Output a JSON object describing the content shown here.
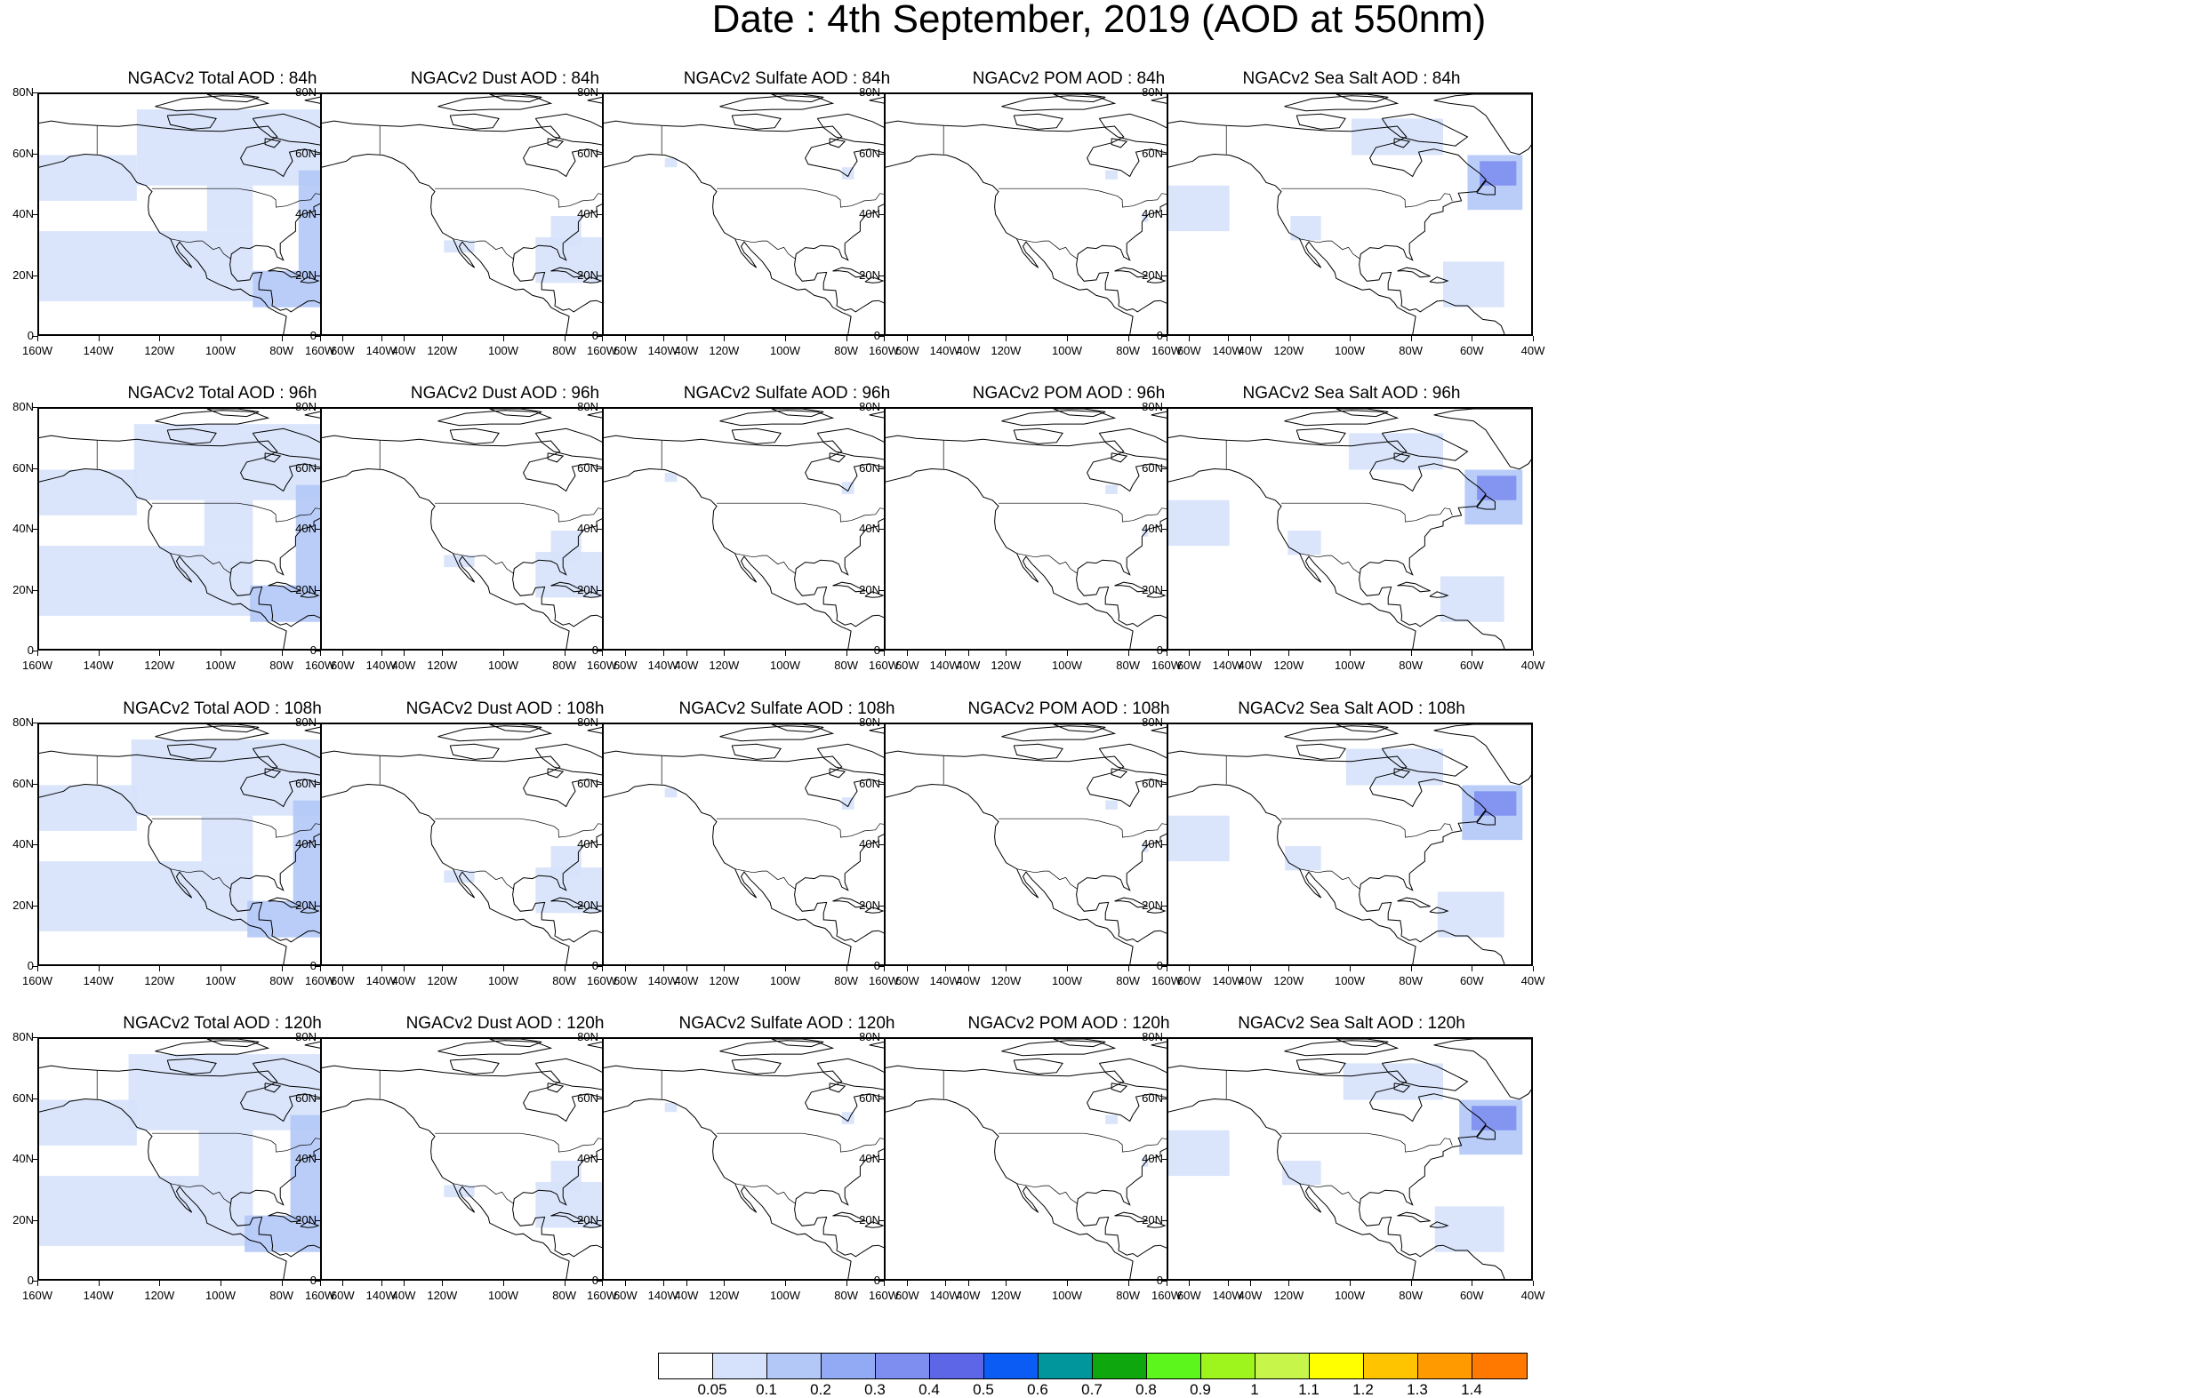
{
  "title": "Date : 4th September, 2019 (AOD at 550nm)",
  "rows": [
    "84h",
    "96h",
    "108h",
    "120h"
  ],
  "panels": [
    [
      "NGACv2 Total AOD : 84h",
      "NGACv2 Dust AOD : 84h",
      "NGACv2 Sulfate AOD : 84h",
      "NGACv2 POM AOD : 84h",
      "NGACv2 Sea Salt AOD : 84h"
    ],
    [
      "NGACv2 Total AOD : 96h",
      "NGACv2 Dust AOD : 96h",
      "NGACv2 Sulfate AOD : 96h",
      "NGACv2 POM AOD : 96h",
      "NGACv2 Sea Salt AOD : 96h"
    ],
    [
      "NGACv2 Total AOD : 108h",
      "NGACv2 Dust AOD : 108h",
      "NGACv2 Sulfate AOD : 108h",
      "NGACv2 POM AOD : 108h",
      "NGACv2 Sea Salt AOD : 108h"
    ],
    [
      "NGACv2 Total AOD : 120h",
      "NGACv2 Dust AOD : 120h",
      "NGACv2 Sulfate AOD : 120h",
      "NGACv2 POM AOD : 120h",
      "NGACv2 Sea Salt  AOD : 120h"
    ]
  ],
  "y_ticks": [
    "0",
    "20N",
    "40N",
    "60N",
    "80N"
  ],
  "x_ticks": [
    "160W",
    "140W",
    "120W",
    "100W",
    "80W",
    "60W",
    "40W"
  ],
  "map_extent": {
    "lon": [
      -160,
      -40
    ],
    "lat": [
      0,
      80
    ]
  },
  "colorbar": {
    "labels": [
      "0.05",
      "0.1",
      "0.2",
      "0.3",
      "0.4",
      "0.5",
      "0.6",
      "0.7",
      "0.8",
      "0.9",
      "1",
      "1.1",
      "1.2",
      "1.3",
      "1.4"
    ],
    "colors": [
      "#ffffff",
      "#d6e2fb",
      "#b3c8f7",
      "#92aaf3",
      "#7d8ef0",
      "#5e66e8",
      "#0b5cf5",
      "#00969b",
      "#0ea80e",
      "#5cf51c",
      "#9ef51e",
      "#c8f54a",
      "#ffff00",
      "#ffc400",
      "#ff9a00",
      "#ff7800",
      "#ff2a1a"
    ]
  },
  "aod_levels_color": {
    "low": "#d6e2fb",
    "mid": "#b3c8f7",
    "high": "#92aaf3",
    "peak": "#7d8ef0"
  }
}
